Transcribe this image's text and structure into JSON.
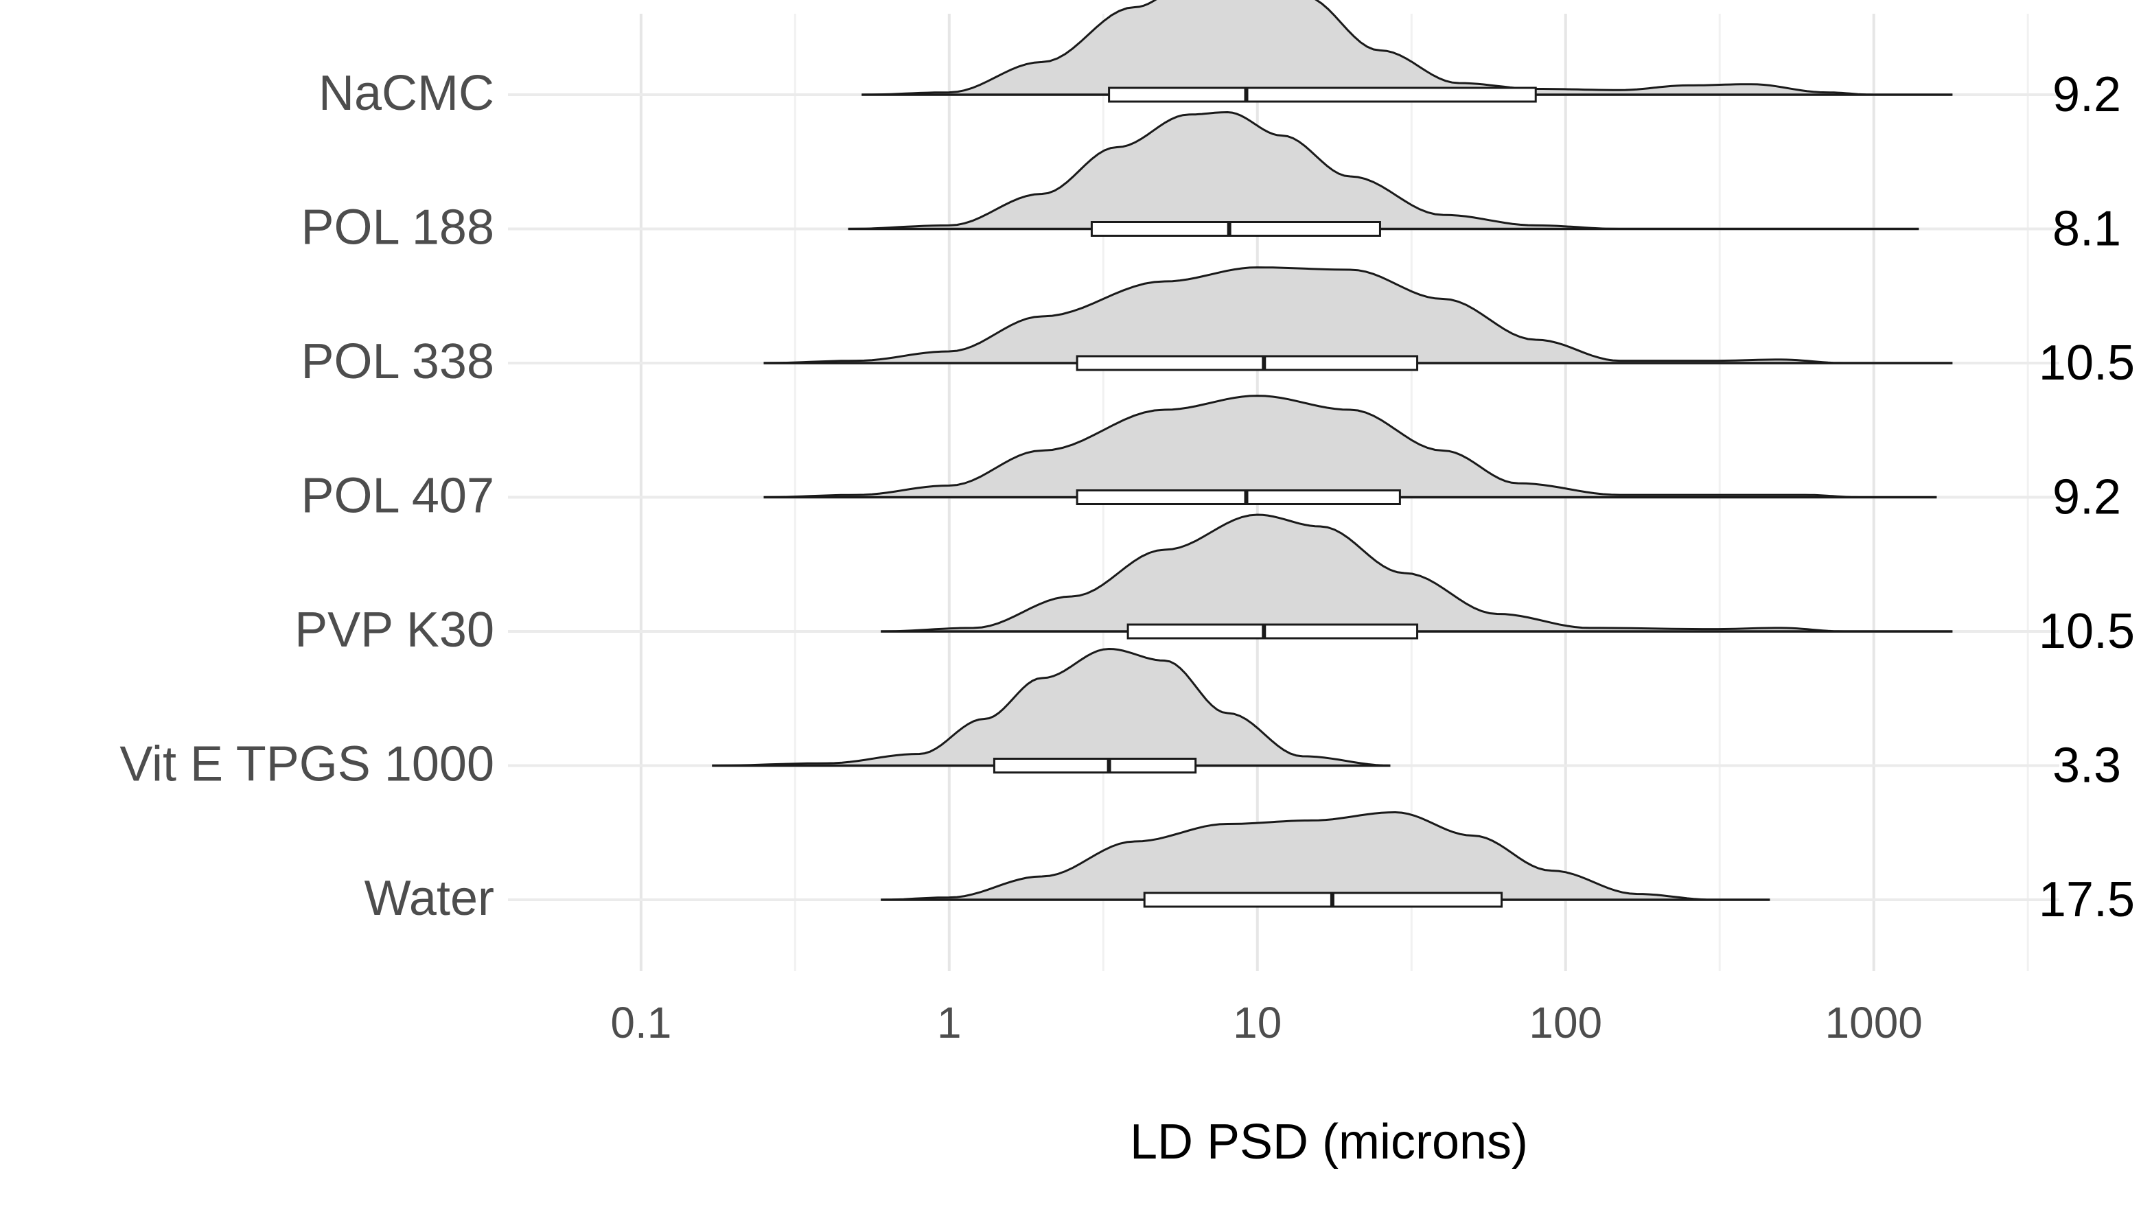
{
  "chart_data": {
    "type": "ridgeline-density-boxplot",
    "xlabel": "LD PSD (microns)",
    "x_scale": "log10",
    "xlim": [
      0.037,
      4000
    ],
    "x_ticks": [
      0.1,
      1,
      10,
      100,
      1000
    ],
    "x_tick_labels": [
      "0.1",
      "1",
      "10",
      "100",
      "1000"
    ],
    "grid": true,
    "series": [
      {
        "name": "NaCMC",
        "median_label": "9.2",
        "range": [
          0.52,
          1800
        ],
        "box": {
          "q1": 3.3,
          "median": 9.2,
          "q3": 80
        },
        "density": [
          [
            0.52,
            0
          ],
          [
            1,
            0.02
          ],
          [
            2,
            0.28
          ],
          [
            4,
            0.75
          ],
          [
            6,
            0.95
          ],
          [
            9,
            1.0
          ],
          [
            14,
            0.85
          ],
          [
            25,
            0.38
          ],
          [
            45,
            0.1
          ],
          [
            80,
            0.05
          ],
          [
            150,
            0.04
          ],
          [
            250,
            0.08
          ],
          [
            400,
            0.09
          ],
          [
            700,
            0.02
          ],
          [
            1000,
            0
          ],
          [
            1800,
            0
          ]
        ]
      },
      {
        "name": "POL 188",
        "median_label": "8.1",
        "range": [
          0.47,
          1400
        ],
        "box": {
          "q1": 2.9,
          "median": 8.1,
          "q3": 25
        },
        "density": [
          [
            0.47,
            0
          ],
          [
            1,
            0.03
          ],
          [
            2,
            0.3
          ],
          [
            3.5,
            0.7
          ],
          [
            6,
            0.98
          ],
          [
            8,
            1.0
          ],
          [
            12,
            0.8
          ],
          [
            20,
            0.45
          ],
          [
            40,
            0.12
          ],
          [
            80,
            0.03
          ],
          [
            150,
            0
          ],
          [
            1400,
            0
          ]
        ]
      },
      {
        "name": "POL 338",
        "median_label": "10.5",
        "range": [
          0.25,
          1800
        ],
        "box": {
          "q1": 2.6,
          "median": 10.5,
          "q3": 33
        },
        "density": [
          [
            0.25,
            0
          ],
          [
            0.5,
            0.02
          ],
          [
            1,
            0.1
          ],
          [
            2,
            0.4
          ],
          [
            5,
            0.7
          ],
          [
            10,
            0.82
          ],
          [
            20,
            0.8
          ],
          [
            40,
            0.55
          ],
          [
            80,
            0.2
          ],
          [
            150,
            0.02
          ],
          [
            300,
            0.02
          ],
          [
            500,
            0.03
          ],
          [
            800,
            0
          ],
          [
            1800,
            0
          ]
        ]
      },
      {
        "name": "POL 407",
        "median_label": "9.2",
        "range": [
          0.25,
          1600
        ],
        "box": {
          "q1": 2.6,
          "median": 9.2,
          "q3": 29
        },
        "density": [
          [
            0.25,
            0
          ],
          [
            0.5,
            0.02
          ],
          [
            1,
            0.1
          ],
          [
            2,
            0.4
          ],
          [
            5,
            0.75
          ],
          [
            10,
            0.87
          ],
          [
            20,
            0.75
          ],
          [
            40,
            0.4
          ],
          [
            70,
            0.12
          ],
          [
            150,
            0.02
          ],
          [
            300,
            0.02
          ],
          [
            600,
            0.02
          ],
          [
            900,
            0
          ],
          [
            1600,
            0
          ]
        ]
      },
      {
        "name": "PVP K30",
        "median_label": "10.5",
        "range": [
          0.6,
          1800
        ],
        "box": {
          "q1": 3.8,
          "median": 10.5,
          "q3": 33
        },
        "density": [
          [
            0.6,
            0
          ],
          [
            1.2,
            0.03
          ],
          [
            2.5,
            0.3
          ],
          [
            5,
            0.7
          ],
          [
            10,
            1.0
          ],
          [
            16,
            0.9
          ],
          [
            30,
            0.5
          ],
          [
            60,
            0.15
          ],
          [
            120,
            0.03
          ],
          [
            300,
            0.02
          ],
          [
            500,
            0.03
          ],
          [
            800,
            0
          ],
          [
            1800,
            0
          ]
        ]
      },
      {
        "name": "Vit E TPGS 1000",
        "median_label": "3.3",
        "range": [
          0.17,
          27
        ],
        "box": {
          "q1": 1.4,
          "median": 3.3,
          "q3": 6.3
        },
        "density": [
          [
            0.17,
            0
          ],
          [
            0.4,
            0.02
          ],
          [
            0.8,
            0.1
          ],
          [
            1.3,
            0.4
          ],
          [
            2,
            0.75
          ],
          [
            3.3,
            1.0
          ],
          [
            5,
            0.9
          ],
          [
            8,
            0.45
          ],
          [
            14,
            0.08
          ],
          [
            27,
            0
          ]
        ]
      },
      {
        "name": "Water",
        "median_label": "17.5",
        "range": [
          0.6,
          460
        ],
        "box": {
          "q1": 4.3,
          "median": 17.5,
          "q3": 62
        },
        "density": [
          [
            0.6,
            0
          ],
          [
            1,
            0.02
          ],
          [
            2,
            0.2
          ],
          [
            4,
            0.5
          ],
          [
            8,
            0.65
          ],
          [
            15,
            0.68
          ],
          [
            28,
            0.75
          ],
          [
            50,
            0.55
          ],
          [
            90,
            0.25
          ],
          [
            170,
            0.05
          ],
          [
            300,
            0
          ],
          [
            460,
            0
          ]
        ]
      }
    ]
  }
}
